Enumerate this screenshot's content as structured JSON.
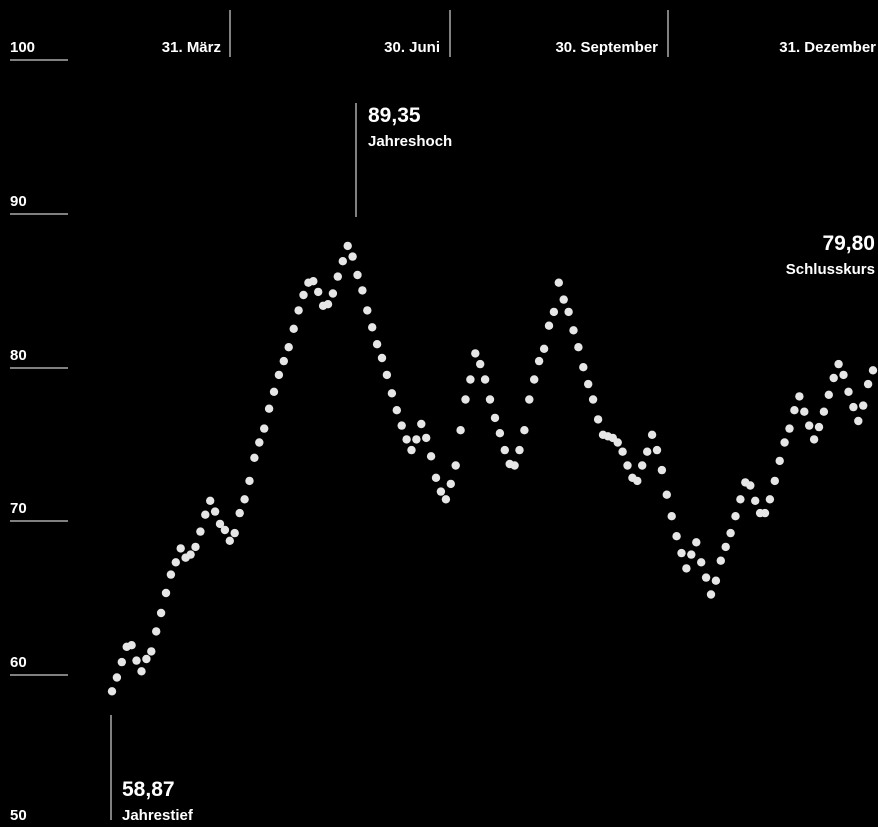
{
  "chart_data": {
    "type": "scatter",
    "ylim": [
      50,
      100
    ],
    "y_ticks": [
      "100",
      "90",
      "80",
      "70",
      "60",
      "50"
    ],
    "x_ticks": [
      {
        "label": "31. März"
      },
      {
        "label": "30. Juni"
      },
      {
        "label": "30. September"
      },
      {
        "label": "31. Dezember"
      }
    ],
    "annotations": {
      "high": {
        "value": "89,35",
        "label": "Jahreshoch"
      },
      "low": {
        "value": "58,87",
        "label": "Jahrestief"
      },
      "close": {
        "value": "79,80",
        "label": "Schlusskurs"
      }
    },
    "series": [
      {
        "values": [
          58.9,
          59.8,
          60.8,
          61.8,
          61.9,
          60.9,
          60.2,
          61.0,
          61.5,
          62.8,
          64.0,
          65.3,
          66.5,
          67.3,
          68.2,
          67.6,
          67.8,
          68.3,
          69.3,
          70.4,
          71.3,
          70.6,
          69.8,
          69.4,
          68.7,
          69.2,
          70.5,
          71.4,
          72.6,
          74.1,
          75.1,
          76.0,
          77.3,
          78.4,
          79.5,
          80.4,
          81.3,
          82.5,
          83.7,
          84.7,
          85.5,
          85.6,
          84.9,
          84.0,
          84.1,
          84.8,
          85.9,
          86.9,
          87.9,
          87.2,
          86.0,
          85.0,
          83.7,
          82.6,
          81.5,
          80.6,
          79.5,
          78.3,
          77.2,
          76.2,
          75.3,
          74.6,
          75.3,
          76.3,
          75.4,
          74.2,
          72.8,
          71.9,
          71.4,
          72.4,
          73.6,
          75.9,
          77.9,
          79.2,
          80.9,
          80.2,
          79.2,
          77.9,
          76.7,
          75.7,
          74.6,
          73.7,
          73.6,
          74.6,
          75.9,
          77.9,
          79.2,
          80.4,
          81.2,
          82.7,
          83.6,
          85.5,
          84.4,
          83.6,
          82.4,
          81.3,
          80.0,
          78.9,
          77.9,
          76.6,
          75.6,
          75.5,
          75.4,
          75.1,
          74.5,
          73.6,
          72.8,
          72.6,
          73.6,
          74.5,
          75.6,
          74.6,
          73.3,
          71.7,
          70.3,
          69.0,
          67.9,
          66.9,
          67.8,
          68.6,
          67.3,
          66.3,
          65.2,
          66.1,
          67.4,
          68.3,
          69.2,
          70.3,
          71.4,
          72.5,
          72.3,
          71.3,
          70.5,
          70.5,
          71.4,
          72.6,
          73.9,
          75.1,
          76.0,
          77.2,
          78.1,
          77.1,
          76.2,
          75.3,
          76.1,
          77.1,
          78.2,
          79.3,
          80.2,
          79.5,
          78.4,
          77.4,
          76.5,
          77.5,
          78.9,
          79.8
        ]
      }
    ]
  }
}
